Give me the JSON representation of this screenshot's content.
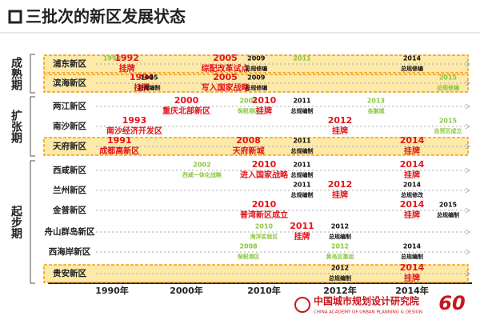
{
  "title": "三批次的新区发展状态",
  "axis": [
    "1990年",
    "2000年",
    "2010年",
    "2012年",
    "2014年"
  ],
  "groups": [
    {
      "label": "成熟期",
      "rows": [
        0,
        1
      ]
    },
    {
      "label": "扩张期",
      "rows": [
        2,
        3,
        4
      ]
    },
    {
      "label": "起步期",
      "rows": [
        5,
        6,
        7,
        8,
        9,
        10
      ]
    }
  ],
  "rows": [
    {
      "name": "浦东新区",
      "highlight": true,
      "events": [
        {
          "year": "1990",
          "color": "#8cc63f"
        },
        {
          "year": "1992",
          "text": "挂牌",
          "color": "#e3141b"
        },
        {
          "year": "2005",
          "text": "综配改革试点",
          "color": "#e3141b"
        },
        {
          "year": "2009",
          "text": "总规修编",
          "color": "#111111"
        },
        {
          "year": "2011",
          "color": "#8cc63f"
        },
        {
          "year": "2014",
          "text": "总规修编",
          "color": "#111111"
        }
      ]
    },
    {
      "name": "滨海新区",
      "highlight": true,
      "events": [
        {
          "year": "1994",
          "text": "挂牌",
          "color": "#e3141b"
        },
        {
          "year": "1995",
          "text": "总规编制",
          "color": "#111111"
        },
        {
          "year": "2005",
          "text": "写入国家战略",
          "color": "#e3141b"
        },
        {
          "year": "2009",
          "text": "总规修编",
          "color": "#111111"
        },
        {
          "year": "2015",
          "text": "总规修编",
          "color": "#8cc63f"
        }
      ]
    },
    {
      "name": "两江新区",
      "highlight": false,
      "events": [
        {
          "year": "2000",
          "text": "重庆北部新区",
          "color": "#e3141b"
        },
        {
          "year": "2008",
          "text": "保税港区",
          "color": "#8cc63f"
        },
        {
          "year": "2010",
          "text": "挂牌",
          "color": "#e3141b"
        },
        {
          "year": "2011",
          "text": "总规编制",
          "color": "#111111"
        },
        {
          "year": "2013",
          "text": "金融城",
          "color": "#8cc63f"
        }
      ]
    },
    {
      "name": "南沙新区",
      "highlight": false,
      "events": [
        {
          "year": "1993",
          "text": "南沙经济开发区",
          "color": "#e3141b"
        },
        {
          "year": "2012",
          "text": "挂牌",
          "color": "#e3141b"
        },
        {
          "year": "2015",
          "text": "自贸区成立",
          "color": "#8cc63f"
        }
      ]
    },
    {
      "name": "天府新区",
      "highlight": true,
      "events": [
        {
          "year": "1991",
          "text": "成都高新区",
          "color": "#e3141b"
        },
        {
          "year": "2008",
          "text": "天府新城",
          "color": "#e3141b"
        },
        {
          "year": "2011",
          "text": "总规编制",
          "color": "#111111"
        },
        {
          "year": "2014",
          "text": "挂牌",
          "color": "#e3141b"
        }
      ]
    },
    {
      "name": "西咸新区",
      "highlight": false,
      "events": [
        {
          "year": "2002",
          "text": "西咸一体化战略",
          "color": "#8cc63f"
        },
        {
          "year": "2010",
          "text": "进入国家战略",
          "color": "#e3141b"
        },
        {
          "year": "2011",
          "text": "总规编制",
          "color": "#111111"
        },
        {
          "year": "2014",
          "text": "挂牌",
          "color": "#e3141b"
        }
      ]
    },
    {
      "name": "兰州新区",
      "highlight": false,
      "events": [
        {
          "year": "2011",
          "text": "总规编制",
          "color": "#111111"
        },
        {
          "year": "2012",
          "text": "挂牌",
          "color": "#e3141b"
        },
        {
          "year": "2014",
          "text": "总规修改",
          "color": "#111111"
        }
      ]
    },
    {
      "name": "金普新区",
      "highlight": false,
      "events": [
        {
          "year": "2010",
          "text": "普湾新区成立",
          "color": "#e3141b"
        },
        {
          "year": "2014",
          "text": "挂牌",
          "color": "#e3141b"
        },
        {
          "year": "2015",
          "text": "总规编制",
          "color": "#111111"
        }
      ]
    },
    {
      "name": "舟山群岛新区",
      "highlight": false,
      "events": [
        {
          "year": "2010",
          "text": "海洋实验区",
          "color": "#8cc63f"
        },
        {
          "year": "2011",
          "text": "挂牌",
          "color": "#e3141b"
        },
        {
          "year": "2012",
          "text": "总规编制",
          "color": "#111111"
        }
      ]
    },
    {
      "name": "西海岸新区",
      "highlight": false,
      "events": [
        {
          "year": "2008",
          "text": "保税港区",
          "color": "#8cc63f"
        },
        {
          "year": "2012",
          "text": "黄岛区重组",
          "color": "#8cc63f"
        },
        {
          "year": "2014",
          "text": "总规编制",
          "color": "#111111"
        }
      ]
    },
    {
      "name": "贵安新区",
      "highlight": true,
      "events": [
        {
          "year": "2012",
          "text": "总规编制",
          "color": "#111111"
        },
        {
          "year": "2014",
          "text": "挂牌",
          "color": "#e3141b"
        }
      ]
    }
  ],
  "logo": {
    "mark": "60",
    "name": "中国城市规划设计研究院",
    "english": "CHINA ACADEMY OF URBAN PLANNING & DESIGN"
  }
}
